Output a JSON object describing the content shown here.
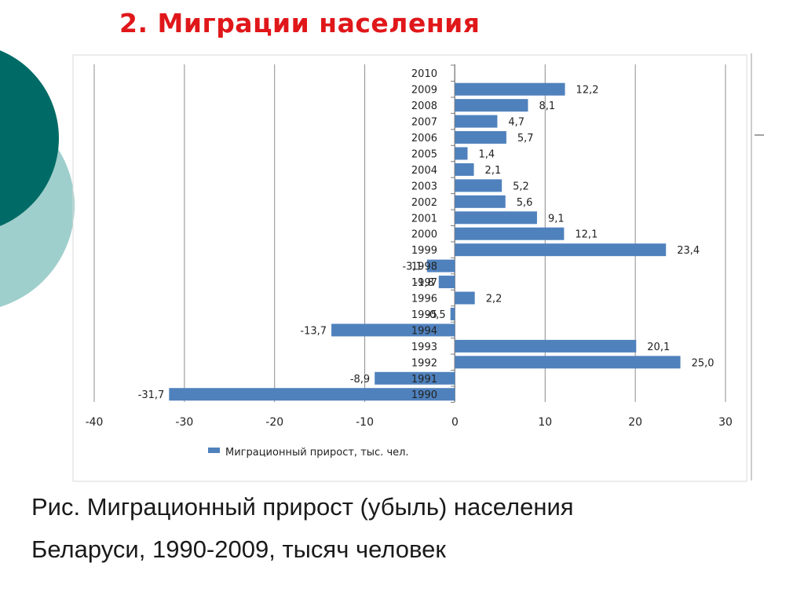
{
  "slide": {
    "title": "2. Миграции населения",
    "caption_line1": "Рис. Миграционный прирост (убыль) населения",
    "caption_line2": "Беларуси, 1990-2009, тысяч человек",
    "colors": {
      "title": "#e0171a",
      "bar": "#4f81bd",
      "circle_dark": "#006b66",
      "circle_light": "#9fcfcc"
    }
  },
  "chart_data": {
    "type": "bar",
    "orientation": "horizontal",
    "categories": [
      "2010",
      "2009",
      "2008",
      "2007",
      "2006",
      "2005",
      "2004",
      "2003",
      "2002",
      "2001",
      "2000",
      "1999",
      "1998",
      "1997",
      "1996",
      "1995",
      "1994",
      "1993",
      "1992",
      "1991",
      "1990"
    ],
    "series": [
      {
        "name": "Миграционный прирост, тыс. чел.",
        "values": [
          null,
          12.2,
          8.1,
          4.7,
          5.7,
          1.4,
          2.1,
          5.2,
          5.6,
          9.1,
          12.1,
          23.4,
          -3.1,
          -1.8,
          2.2,
          -0.5,
          -13.7,
          20.1,
          25.0,
          -8.9,
          -31.7
        ],
        "labels": [
          "",
          "12,2",
          "8,1",
          "4,7",
          "5,7",
          "1,4",
          "2,1",
          "5,2",
          "5,6",
          "9,1",
          "12,1",
          "23,4",
          "-3,1",
          "-1,8",
          "2,2",
          "-0,5",
          "-13,7",
          "20,1",
          "25,0",
          "-8,9",
          "-31,7"
        ]
      }
    ],
    "xlim": [
      -40,
      30
    ],
    "xticks": [
      -40,
      -30,
      -20,
      -10,
      0,
      10,
      20,
      30
    ],
    "xtick_labels": [
      "-40",
      "-30",
      "-20",
      "-10",
      "0",
      "10",
      "20",
      "30"
    ],
    "grid": true,
    "legend": "bottom",
    "title": "",
    "xlabel": "",
    "ylabel": ""
  }
}
